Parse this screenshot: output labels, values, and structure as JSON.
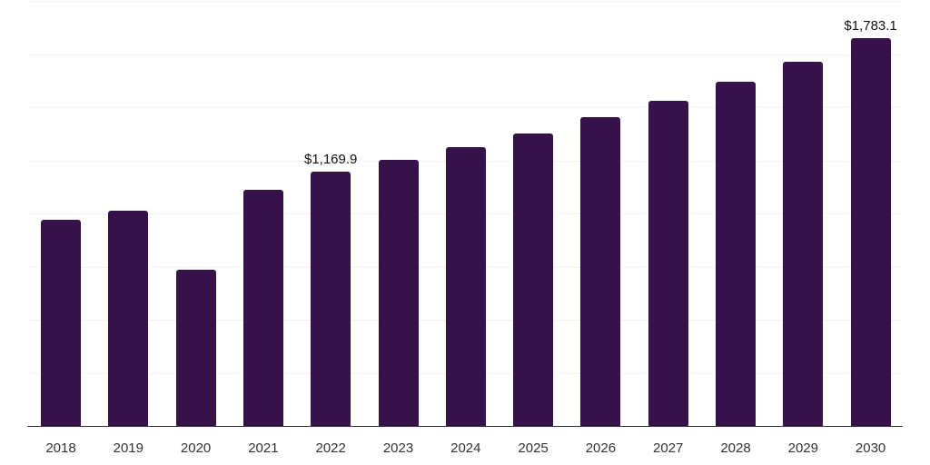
{
  "chart_data": {
    "type": "bar",
    "title": "",
    "xlabel": "",
    "ylabel": "",
    "categories": [
      "2018",
      "2019",
      "2020",
      "2021",
      "2022",
      "2023",
      "2024",
      "2025",
      "2026",
      "2027",
      "2028",
      "2029",
      "2030"
    ],
    "values": [
      949,
      992,
      718,
      1086,
      1169.9,
      1223,
      1283,
      1347,
      1419,
      1496,
      1582,
      1676,
      1783.1
    ],
    "values_note": "Only 2022 (1169.9) and 2030 (1783.1) are labeled; other values estimated from bar heights",
    "data_labels": [
      {
        "category": "2022",
        "text": "$1,169.9"
      },
      {
        "category": "2030",
        "text": "$1,783.1"
      }
    ],
    "ylim": [
      0,
      2000
    ],
    "grid": true,
    "y_axis_labels_visible": false,
    "legend": "none",
    "bar_color": "#371149"
  },
  "labels": {
    "2022": "$1,169.9",
    "2030": "$1,783.1"
  },
  "x_ticks": [
    "2018",
    "2019",
    "2020",
    "2021",
    "2022",
    "2023",
    "2024",
    "2025",
    "2026",
    "2027",
    "2028",
    "2029",
    "2030"
  ]
}
